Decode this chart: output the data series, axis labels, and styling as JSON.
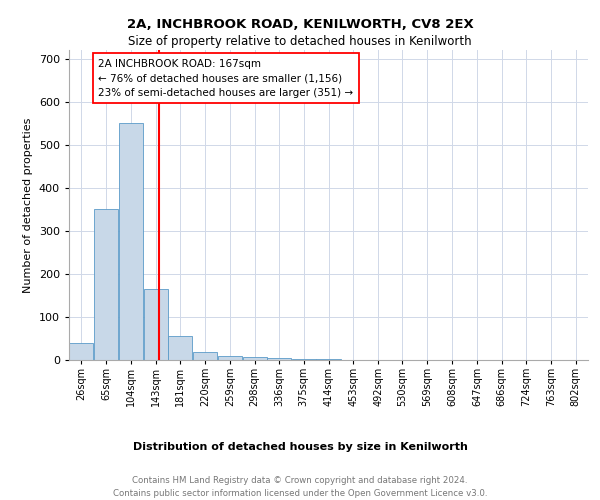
{
  "title": "2A, INCHBROOK ROAD, KENILWORTH, CV8 2EX",
  "subtitle": "Size of property relative to detached houses in Kenilworth",
  "xlabel": "Distribution of detached houses by size in Kenilworth",
  "ylabel": "Number of detached properties",
  "bar_color": "#c8d8e8",
  "bar_edge_color": "#5a9ac8",
  "vline_color": "red",
  "vline_x": 167,
  "annotation_text": "2A INCHBROOK ROAD: 167sqm\n← 76% of detached houses are smaller (1,156)\n23% of semi-detached houses are larger (351) →",
  "footer": "Contains HM Land Registry data © Crown copyright and database right 2024.\nContains public sector information licensed under the Open Government Licence v3.0.",
  "bin_edges": [
    26,
    65,
    104,
    143,
    181,
    220,
    259,
    298,
    336,
    375,
    414,
    453,
    492,
    530,
    569,
    608,
    647,
    686,
    724,
    763,
    802
  ],
  "bin_labels": [
    "26sqm",
    "65sqm",
    "104sqm",
    "143sqm",
    "181sqm",
    "220sqm",
    "259sqm",
    "298sqm",
    "336sqm",
    "375sqm",
    "414sqm",
    "453sqm",
    "492sqm",
    "530sqm",
    "569sqm",
    "608sqm",
    "647sqm",
    "686sqm",
    "724sqm",
    "763sqm",
    "802sqm"
  ],
  "counts": [
    40,
    350,
    550,
    165,
    55,
    18,
    10,
    6,
    4,
    3,
    2,
    1,
    1,
    1,
    1,
    0,
    0,
    0,
    0,
    0
  ],
  "ylim": [
    0,
    720
  ],
  "yticks": [
    0,
    100,
    200,
    300,
    400,
    500,
    600,
    700
  ],
  "grid_color": "#d0d8e8"
}
